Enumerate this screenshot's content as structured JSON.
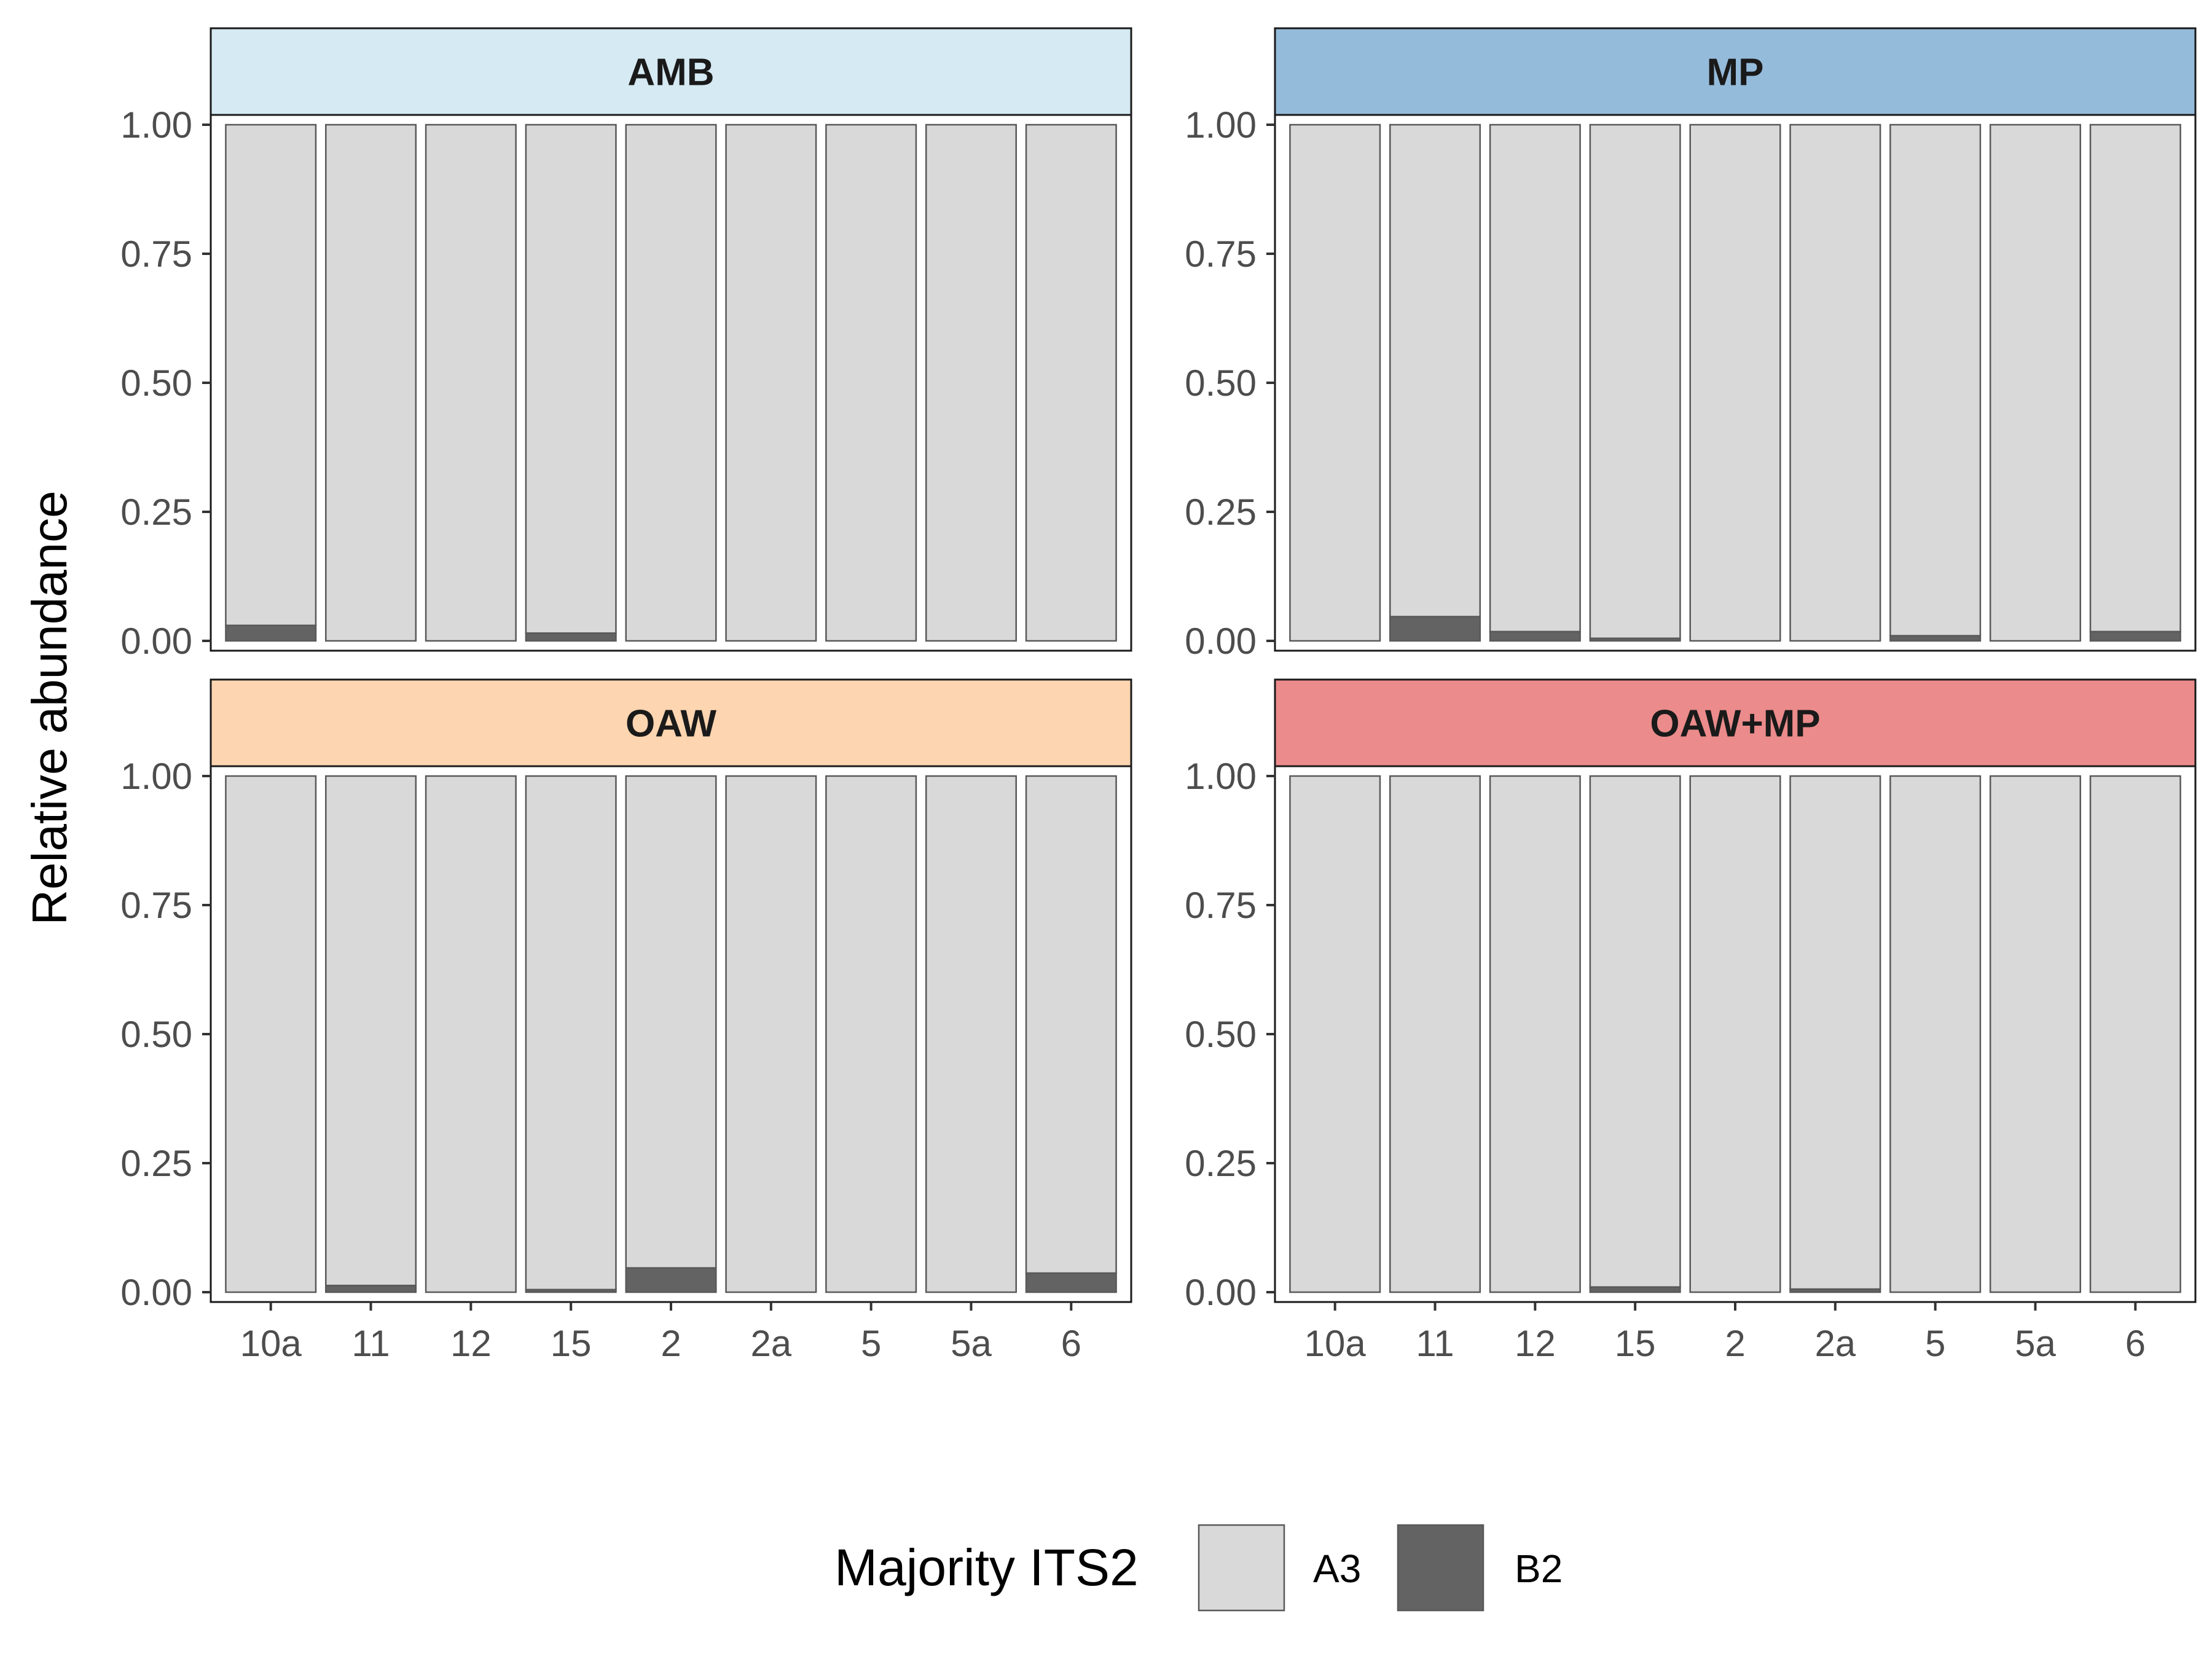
{
  "chart_data": {
    "type": "bar",
    "stacked": true,
    "ylabel": "Relative abundance",
    "ylim": [
      0,
      1
    ],
    "yticks": [
      "0.00",
      "0.25",
      "0.50",
      "0.75",
      "1.00"
    ],
    "categories": [
      "10a",
      "11",
      "12",
      "15",
      "2",
      "2a",
      "5",
      "5a",
      "6"
    ],
    "legend": {
      "title": "Majority ITS2",
      "position": "bottom",
      "items": [
        {
          "label": "A3",
          "color": "#d9d9d9"
        },
        {
          "label": "B2",
          "color": "#636363"
        }
      ]
    },
    "grid": false,
    "panels": [
      {
        "label": "AMB",
        "strip_color": "#d5eaf3",
        "series": [
          {
            "name": "A3",
            "values": [
              0.97,
              1.0,
              1.0,
              0.985,
              1.0,
              1.0,
              1.0,
              1.0,
              1.0
            ]
          },
          {
            "name": "B2",
            "values": [
              0.03,
              0.0,
              0.0,
              0.015,
              0.0,
              0.0,
              0.0,
              0.0,
              0.0
            ]
          }
        ]
      },
      {
        "label": "MP",
        "strip_color": "#95bbda",
        "series": [
          {
            "name": "A3",
            "values": [
              1.0,
              0.953,
              0.982,
              0.995,
              1.0,
              1.0,
              0.99,
              1.0,
              0.982
            ]
          },
          {
            "name": "B2",
            "values": [
              0.0,
              0.047,
              0.018,
              0.005,
              0.0,
              0.0,
              0.01,
              0.0,
              0.018
            ]
          }
        ]
      },
      {
        "label": "OAW",
        "strip_color": "#fdd5b0",
        "series": [
          {
            "name": "A3",
            "values": [
              1.0,
              0.987,
              1.0,
              0.995,
              0.953,
              1.0,
              1.0,
              1.0,
              0.963
            ]
          },
          {
            "name": "B2",
            "values": [
              0.0,
              0.013,
              0.0,
              0.005,
              0.047,
              0.0,
              0.0,
              0.0,
              0.037
            ]
          }
        ]
      },
      {
        "label": "OAW+MP",
        "strip_color": "#eb8b8b",
        "series": [
          {
            "name": "A3",
            "values": [
              1.0,
              1.0,
              1.0,
              0.99,
              1.0,
              0.994,
              1.0,
              1.0,
              1.0
            ]
          },
          {
            "name": "B2",
            "values": [
              0.0,
              0.0,
              0.0,
              0.01,
              0.0,
              0.006,
              0.0,
              0.0,
              0.0
            ]
          }
        ]
      }
    ]
  }
}
